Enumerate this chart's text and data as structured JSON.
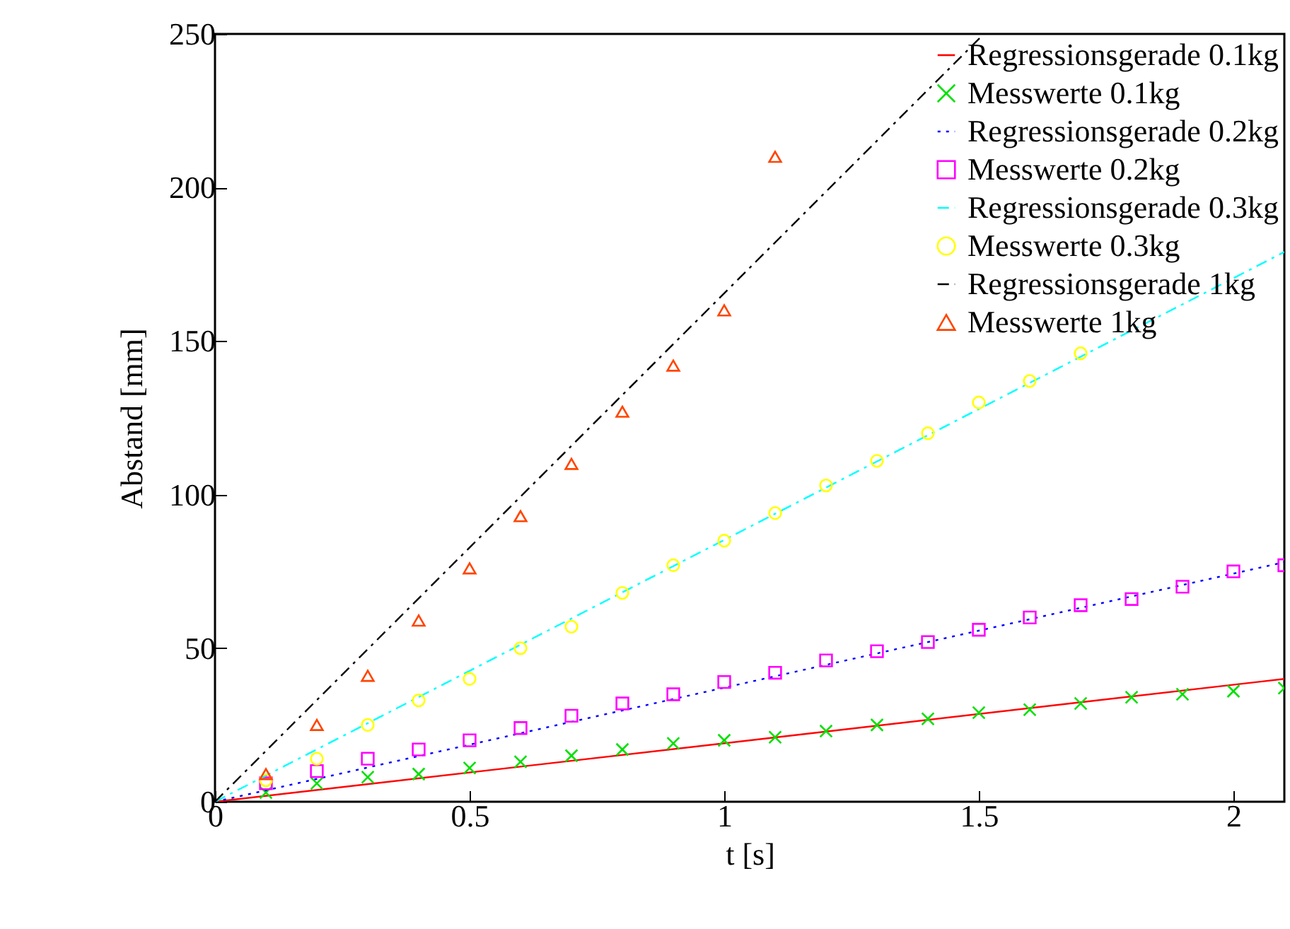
{
  "chart_data": {
    "type": "scatter",
    "xlabel": "t [s]",
    "ylabel": "Abstand [mm]",
    "xlim": [
      0,
      2.1
    ],
    "ylim": [
      0,
      250
    ],
    "xticks": [
      0,
      0.5,
      1,
      1.5,
      2
    ],
    "yticks": [
      0,
      50,
      100,
      150,
      200,
      250
    ],
    "grid": false,
    "legend": "top right",
    "series": [
      {
        "name": "Regressionsgerade 0.1kg",
        "type": "line",
        "line_style": "solid",
        "color": "#ff0000",
        "x": [
          0,
          2.1
        ],
        "values": [
          0,
          40
        ]
      },
      {
        "name": "Messwerte 0.1kg",
        "marker": "cross",
        "color": "#00e000",
        "x": [
          0.1,
          0.2,
          0.3,
          0.4,
          0.5,
          0.6,
          0.7,
          0.8,
          0.9,
          1.0,
          1.1,
          1.2,
          1.3,
          1.4,
          1.5,
          1.6,
          1.7,
          1.8,
          1.9,
          2.0,
          2.1
        ],
        "values": [
          3,
          6,
          8,
          9,
          11,
          13,
          15,
          17,
          19,
          20,
          21,
          23,
          25,
          27,
          29,
          30,
          32,
          34,
          35,
          36,
          37
        ]
      },
      {
        "name": "Regressionsgerade 0.2kg",
        "type": "line",
        "line_style": "dotted",
        "color": "#0000ff",
        "x": [
          0,
          2.1
        ],
        "values": [
          0,
          78
        ]
      },
      {
        "name": "Messwerte 0.2kg",
        "marker": "square",
        "color": "#ff00ff",
        "x": [
          0.1,
          0.2,
          0.3,
          0.4,
          0.5,
          0.6,
          0.7,
          0.8,
          0.9,
          1.0,
          1.1,
          1.2,
          1.3,
          1.4,
          1.5,
          1.6,
          1.7,
          1.8,
          1.9,
          2.0,
          2.1
        ],
        "values": [
          6,
          10,
          14,
          17,
          20,
          24,
          28,
          32,
          35,
          39,
          42,
          46,
          49,
          52,
          56,
          60,
          64,
          66,
          70,
          75,
          77
        ]
      },
      {
        "name": "Regressionsgerade 0.3kg",
        "type": "line",
        "line_style": "dashed",
        "color": "#00ffff",
        "x": [
          0,
          2.1
        ],
        "values": [
          0,
          179
        ]
      },
      {
        "name": "Messwerte 0.3kg",
        "marker": "circle",
        "color": "#ffff00",
        "x": [
          0.1,
          0.2,
          0.3,
          0.4,
          0.5,
          0.6,
          0.7,
          0.8,
          0.9,
          1.0,
          1.1,
          1.2,
          1.3,
          1.4,
          1.5,
          1.6,
          1.7
        ],
        "values": [
          7,
          14,
          25,
          33,
          40,
          50,
          57,
          68,
          77,
          85,
          94,
          103,
          111,
          120,
          130,
          137,
          146
        ]
      },
      {
        "name": "Regressionsgerade 1kg",
        "type": "line",
        "line_style": "dashed",
        "color": "#000000",
        "x": [
          0,
          1.51
        ],
        "values": [
          0,
          250
        ]
      },
      {
        "name": "Messwerte 1kg",
        "marker": "triangle",
        "color": "#ff4500",
        "x": [
          0.1,
          0.2,
          0.3,
          0.4,
          0.5,
          0.6,
          0.7,
          0.8,
          0.9,
          1.0,
          1.1
        ],
        "values": [
          9,
          25,
          41,
          59,
          76,
          93,
          110,
          127,
          142,
          160,
          210
        ]
      }
    ]
  }
}
